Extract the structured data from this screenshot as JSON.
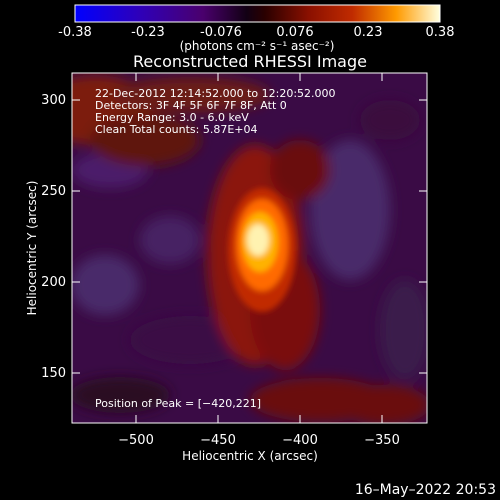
{
  "colorbar": {
    "ticks": [
      "-0.38",
      "-0.23",
      "-0.076",
      "0.076",
      "0.23",
      "0.38"
    ],
    "units": "(photons cm⁻² s⁻¹ asec⁻²)"
  },
  "plot": {
    "title": "Reconstructed RHESSI Image",
    "xlabel": "Heliocentric X (arcsec)",
    "ylabel": "Heliocentric Y (arcsec)",
    "xticks": [
      "−500",
      "−450",
      "−400",
      "−350"
    ],
    "yticks": [
      "300",
      "250",
      "200",
      "150"
    ],
    "annotation_lines": [
      "22-Dec-2012 12:14:52.000 to 12:20:52.000",
      "Detectors: 3F 4F 5F 6F 7F 8F, Att 0",
      "Energy Range: 3.0 - 6.0 keV",
      "Clean     Total counts: 5.87E+04"
    ],
    "peak_label": "Position of Peak = [−420,221]"
  },
  "footer": {
    "timestamp": "16–May–2022 20:53"
  },
  "chart_data": {
    "type": "heatmap",
    "title": "Reconstructed RHESSI Image",
    "xlabel": "Heliocentric X (arcsec)",
    "ylabel": "Heliocentric Y (arcsec)",
    "xlim": [
      -525,
      -330
    ],
    "ylim": [
      120,
      315
    ],
    "clim": [
      -0.38,
      0.38
    ],
    "peak": [
      -420,
      221
    ],
    "colorbar_label": "(photons cm^-2 s^-1 asec^-2)"
  }
}
